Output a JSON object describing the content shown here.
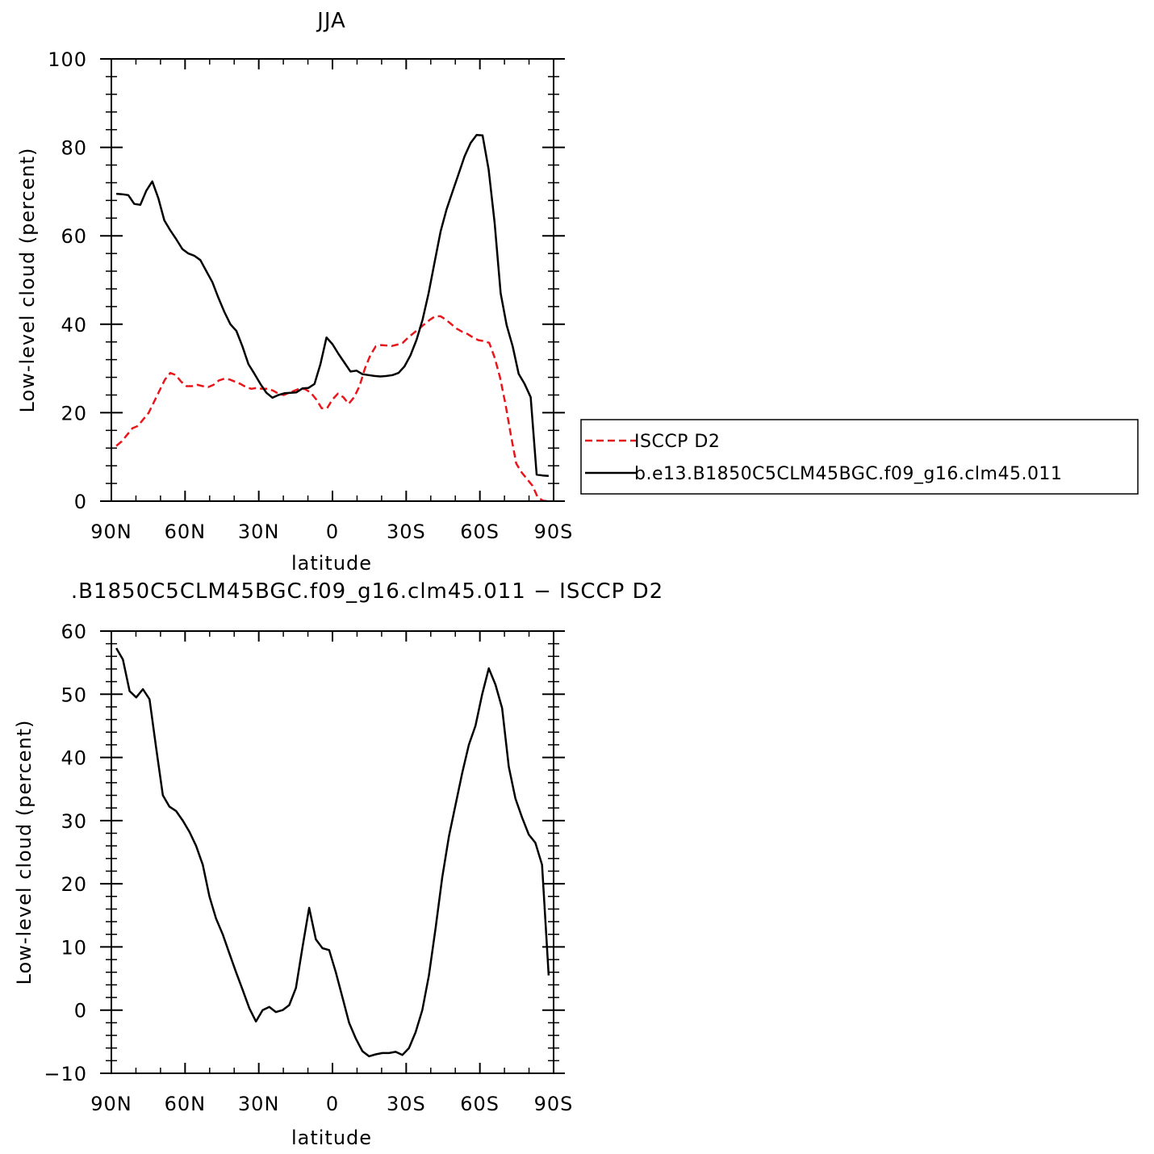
{
  "chart_data": [
    {
      "type": "line",
      "title": "JJA",
      "xlabel": "latitude",
      "ylabel": "Low-level cloud (percent)",
      "x_ticks": [
        "90N",
        "60N",
        "30N",
        "0",
        "30S",
        "60S",
        "90S"
      ],
      "x_tick_values": [
        90,
        60,
        30,
        0,
        -30,
        -60,
        -90
      ],
      "xlim": [
        90,
        -90
      ],
      "ylim": [
        0,
        100
      ],
      "y_ticks": [
        0,
        20,
        40,
        60,
        80,
        100
      ],
      "grid": false,
      "legend_position": "right",
      "series": [
        {
          "name": "ISCCP D2",
          "color": "#e8161a",
          "dash": "dashed",
          "x": [
            88,
            86,
            84,
            82,
            80,
            78,
            76,
            74,
            72,
            70,
            68,
            66,
            64,
            62,
            60,
            58,
            56,
            54,
            52,
            50,
            48,
            46,
            44,
            42,
            40,
            38,
            36,
            34,
            32,
            30,
            28,
            26,
            24,
            22,
            20,
            18,
            16,
            14,
            12,
            10,
            8,
            6,
            4,
            2,
            0,
            -2,
            -4,
            -6,
            -8,
            -10,
            -12,
            -14,
            -16,
            -18,
            -20,
            -22,
            -24,
            -26,
            -28,
            -30,
            -32,
            -34,
            -36,
            -38,
            -40,
            -42,
            -44,
            -46,
            -48,
            -50,
            -52,
            -54,
            -56,
            -58,
            -60,
            -62,
            -64,
            -66,
            -68,
            -70,
            -72,
            -74,
            -76,
            -78,
            -80,
            -82,
            -84,
            -86,
            -88
          ],
          "values": [
            12.5,
            13.5,
            15.0,
            16.5,
            17.0,
            18.5,
            20.0,
            22.5,
            25.0,
            27.5,
            29.0,
            28.5,
            27.0,
            26.0,
            26.0,
            26.3,
            26.0,
            25.8,
            26.3,
            27.3,
            27.7,
            27.5,
            27.0,
            26.5,
            25.8,
            25.4,
            25.6,
            25.4,
            25.4,
            25.0,
            24.3,
            24.0,
            24.5,
            25.0,
            25.5,
            25.3,
            24.5,
            23.0,
            21.0,
            21.0,
            23.0,
            24.3,
            23.5,
            22.0,
            23.5,
            26.0,
            30.0,
            33.0,
            35.0,
            35.3,
            35.2,
            35.1,
            35.4,
            35.8,
            37.0,
            38.0,
            39.0,
            40.0,
            41.0,
            41.8,
            41.8,
            41.0,
            40.0,
            39.0,
            38.3,
            37.8,
            37.0,
            36.4,
            36.2,
            35.8,
            32.5,
            28.0,
            22.0,
            15.0,
            8.5,
            6.5,
            5.0,
            3.5,
            0.8,
            0.1,
            0.0,
            0.0,
            0.0,
            0.0,
            0.0,
            0.0,
            0.0,
            0.0,
            0.0
          ]
        },
        {
          "name": "b.e13.B1850C5CLM45BGC.f09_g16.clm45.011",
          "color": "#000000",
          "dash": "solid",
          "x": [
            88,
            86,
            84,
            82,
            80,
            78,
            76,
            74,
            72,
            70,
            68,
            66,
            64,
            62,
            60,
            58,
            56,
            54,
            52,
            50,
            48,
            46,
            44,
            42,
            40,
            38,
            36,
            34,
            32,
            30,
            28,
            26,
            24,
            22,
            20,
            18,
            16,
            14,
            12,
            10,
            8,
            6,
            4,
            2,
            0,
            -2,
            -4,
            -6,
            -8,
            -10,
            -12,
            -14,
            -16,
            -18,
            -20,
            -22,
            -24,
            -26,
            -28,
            -30,
            -32,
            -34,
            -36,
            -38,
            -40,
            -42,
            -44,
            -46,
            -48,
            -50,
            -52,
            -54,
            -56,
            -58,
            -60,
            -62,
            -64,
            -66,
            -68,
            -70,
            -72,
            -74,
            -76,
            -78,
            -80,
            -82,
            -84,
            -86,
            -88
          ],
          "values": [
            69.5,
            69.4,
            69.2,
            67.2,
            67.0,
            70.2,
            72.3,
            68.5,
            63.5,
            61.2,
            59.2,
            57.0,
            56.0,
            55.5,
            54.5,
            52.0,
            49.5,
            46.0,
            42.8,
            40.0,
            38.5,
            35.0,
            31.0,
            28.8,
            26.5,
            24.5,
            23.4,
            24.0,
            24.4,
            24.5,
            24.6,
            25.5,
            25.6,
            26.5,
            31.0,
            37.0,
            35.5,
            33.3,
            31.3,
            29.3,
            29.5,
            28.7,
            28.5,
            28.3,
            28.2,
            28.3,
            28.5,
            29.0,
            30.5,
            33.0,
            36.5,
            41.0,
            47.0,
            54.0,
            61.0,
            66.0,
            70.0,
            74.0,
            78.0,
            81.0,
            82.8,
            82.7,
            75.0,
            63.0,
            47.0,
            39.8,
            35.0,
            28.8,
            26.5,
            23.5,
            6.0,
            5.8,
            5.7,
            5.7,
            5.7,
            5.7,
            5.7,
            5.7,
            5.7,
            5.7,
            5.7,
            5.7,
            5.7,
            5.7,
            5.7,
            5.7,
            5.7,
            5.7,
            5.7
          ],
          "x_end": -88
        }
      ]
    },
    {
      "type": "line",
      "title": ".B1850C5CLM45BGC.f09_g16.clm45.011 − ISCCP D2",
      "xlabel": "latitude",
      "ylabel": "Low-level cloud (percent)",
      "x_ticks": [
        "90N",
        "60N",
        "30N",
        "0",
        "30S",
        "60S",
        "90S"
      ],
      "x_tick_values": [
        90,
        60,
        30,
        0,
        -30,
        -60,
        -90
      ],
      "xlim": [
        90,
        -90
      ],
      "ylim": [
        -10,
        60
      ],
      "y_ticks": [
        -10,
        0,
        10,
        20,
        30,
        40,
        50,
        60
      ],
      "grid": false,
      "series": [
        {
          "color": "#000000",
          "dash": "solid",
          "x": [
            88,
            86,
            84,
            82,
            80,
            78,
            76,
            74,
            72,
            70,
            68,
            66,
            64,
            62,
            60,
            58,
            56,
            54,
            52,
            50,
            48,
            46,
            44,
            42,
            40,
            38,
            36,
            34,
            32,
            30,
            28,
            26,
            24,
            22,
            20,
            18,
            16,
            14,
            12,
            10,
            8,
            6,
            4,
            2,
            0,
            -2,
            -4,
            -6,
            -8,
            -10,
            -12,
            -14,
            -16,
            -18,
            -20,
            -22,
            -24,
            -26,
            -28,
            -30,
            -32,
            -34,
            -36,
            -38,
            -40,
            -42,
            -44,
            -46,
            -48,
            -50,
            -52,
            -54,
            -56,
            -58,
            -60,
            -62,
            -64,
            -66,
            -68,
            -70,
            -72,
            -74,
            -76,
            -78,
            -80,
            -82,
            -84,
            -86,
            -88
          ],
          "values": [
            57.3,
            55.5,
            50.5,
            49.5,
            50.8,
            49.2,
            41.5,
            34.0,
            32.2,
            31.5,
            30.0,
            28.2,
            26.0,
            23.0,
            18.0,
            14.5,
            12.0,
            9.0,
            6.0,
            3.2,
            0.3,
            -1.8,
            0.0,
            0.5,
            -0.3,
            0.0,
            0.8,
            3.5,
            10.0,
            16.2,
            11.2,
            9.8,
            9.5,
            6.0,
            2.0,
            -2.0,
            -4.5,
            -6.5,
            -7.3,
            -7.0,
            -6.8,
            -6.8,
            -6.6,
            -7.1,
            -6.0,
            -3.5,
            0.0,
            5.5,
            13.0,
            21.0,
            27.5,
            32.5,
            37.5,
            42.0,
            45.0,
            50.0,
            54.1,
            51.5,
            47.8,
            38.5,
            33.5,
            30.5,
            27.8,
            26.5,
            23.0,
            5.5,
            5.5,
            5.5,
            5.5,
            5.5,
            5.5,
            5.5,
            5.5,
            5.5,
            5.5,
            5.5,
            5.5,
            5.5,
            5.5,
            5.5,
            5.5,
            5.5,
            5.5,
            5.5,
            5.5,
            5.5,
            5.5,
            5.5,
            5.5
          ]
        }
      ]
    }
  ]
}
